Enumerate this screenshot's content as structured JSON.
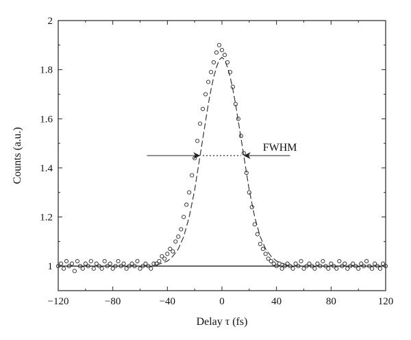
{
  "chart_data": {
    "type": "scatter",
    "xlabel": "Delay τ (fs)",
    "ylabel": "Counts (a.u.)",
    "xlim": [
      -120,
      120
    ],
    "ylim": [
      0.9,
      2.0
    ],
    "x_ticks": [
      -120,
      -80,
      -40,
      0,
      40,
      80,
      120
    ],
    "y_ticks": [
      1,
      1.2,
      1.4,
      1.6,
      1.8,
      2
    ],
    "x_tick_labels": [
      "−120",
      "−80",
      "−40",
      "0",
      "40",
      "80",
      "120"
    ],
    "y_tick_labels": [
      "1",
      "1.2",
      "1.4",
      "1.6",
      "1.8",
      "2"
    ],
    "grid": false,
    "series": [
      {
        "style": "open-circle-markers",
        "x": [
          -120,
          -118,
          -116,
          -114,
          -112,
          -110,
          -108,
          -106,
          -104,
          -102,
          -100,
          -98,
          -96,
          -94,
          -92,
          -90,
          -88,
          -86,
          -84,
          -82,
          -80,
          -78,
          -76,
          -74,
          -72,
          -70,
          -68,
          -66,
          -64,
          -62,
          -60,
          -58,
          -56,
          -54,
          -52,
          -50,
          -48,
          -46,
          -44,
          -42,
          -40,
          -38,
          -36,
          -34,
          -32,
          -30,
          -28,
          -26,
          -24,
          -22,
          -20,
          -18,
          -16,
          -14,
          -12,
          -10,
          -8,
          -6,
          -4,
          -2,
          0,
          2,
          4,
          6,
          8,
          10,
          12,
          14,
          16,
          18,
          20,
          22,
          24,
          26,
          28,
          30,
          32,
          34,
          36,
          38,
          40,
          42,
          44,
          46,
          48,
          50,
          52,
          54,
          56,
          58,
          60,
          62,
          64,
          66,
          68,
          70,
          72,
          74,
          76,
          78,
          80,
          82,
          84,
          86,
          88,
          90,
          92,
          94,
          96,
          98,
          100,
          102,
          104,
          106,
          108,
          110,
          112,
          114,
          116,
          118,
          120
        ],
        "y": [
          1.0,
          1.01,
          0.99,
          1.02,
          1.0,
          1.01,
          0.98,
          1.02,
          1.0,
          0.99,
          1.01,
          1.0,
          1.02,
          0.99,
          1.01,
          1.0,
          0.99,
          1.02,
          1.0,
          1.01,
          0.99,
          1.0,
          1.02,
          1.0,
          1.01,
          0.99,
          1.0,
          1.01,
          1.0,
          1.02,
          0.99,
          1.0,
          1.01,
          1.0,
          0.99,
          1.01,
          1.01,
          1.02,
          1.04,
          1.03,
          1.05,
          1.07,
          1.06,
          1.1,
          1.12,
          1.15,
          1.2,
          1.25,
          1.3,
          1.37,
          1.44,
          1.51,
          1.58,
          1.64,
          1.7,
          1.75,
          1.79,
          1.83,
          1.87,
          1.9,
          1.88,
          1.86,
          1.83,
          1.79,
          1.73,
          1.66,
          1.6,
          1.53,
          1.46,
          1.38,
          1.3,
          1.24,
          1.17,
          1.13,
          1.09,
          1.07,
          1.05,
          1.03,
          1.02,
          1.01,
          1.0,
          1.01,
          0.99,
          1.0,
          1.01,
          1.0,
          0.99,
          1.01,
          1.0,
          1.02,
          0.99,
          1.0,
          1.01,
          1.0,
          0.99,
          1.01,
          1.0,
          1.02,
          1.0,
          0.99,
          1.01,
          1.0,
          0.99,
          1.02,
          1.0,
          1.01,
          0.99,
          1.0,
          1.01,
          1.0,
          0.99,
          1.01,
          1.0,
          1.02,
          1.0,
          0.99,
          1.01,
          1.0,
          0.99,
          1.01,
          1.0
        ]
      },
      {
        "style": "dashed-fit-line",
        "x": [
          -120,
          -110,
          -100,
          -90,
          -80,
          -70,
          -60,
          -50,
          -45,
          -40,
          -36,
          -32,
          -28,
          -24,
          -20,
          -18,
          -16,
          -14,
          -12,
          -10,
          -8,
          -6,
          -4,
          -2,
          0,
          2,
          4,
          6,
          8,
          10,
          12,
          14,
          16,
          18,
          20,
          24,
          28,
          32,
          36,
          40,
          45,
          50,
          60,
          70,
          80,
          90,
          100,
          110,
          120
        ],
        "y": [
          1.0,
          1.0,
          1.0,
          1.0,
          1.0,
          1.0,
          1.0,
          1.0,
          1.01,
          1.02,
          1.04,
          1.07,
          1.12,
          1.2,
          1.31,
          1.38,
          1.45,
          1.52,
          1.59,
          1.66,
          1.72,
          1.77,
          1.81,
          1.84,
          1.85,
          1.84,
          1.81,
          1.77,
          1.72,
          1.66,
          1.59,
          1.52,
          1.45,
          1.38,
          1.31,
          1.2,
          1.12,
          1.07,
          1.04,
          1.02,
          1.01,
          1.0,
          1.0,
          1.0,
          1.0,
          1.0,
          1.0,
          1.0,
          1.0
        ]
      }
    ],
    "annotations": [
      {
        "text": "FWHM",
        "x": 30,
        "y": 1.47
      },
      {
        "type": "fwhm-dotted-line",
        "x": [
          -14,
          14
        ],
        "y": 1.45
      },
      {
        "type": "arrow-right",
        "from_x": -55,
        "to_x": -16,
        "y": 1.45
      },
      {
        "type": "arrow-left",
        "from_x": 50,
        "to_x": 16,
        "y": 1.45
      },
      {
        "type": "baseline-solid-line",
        "x": [
          -120,
          120
        ],
        "y": 1.0
      }
    ]
  }
}
